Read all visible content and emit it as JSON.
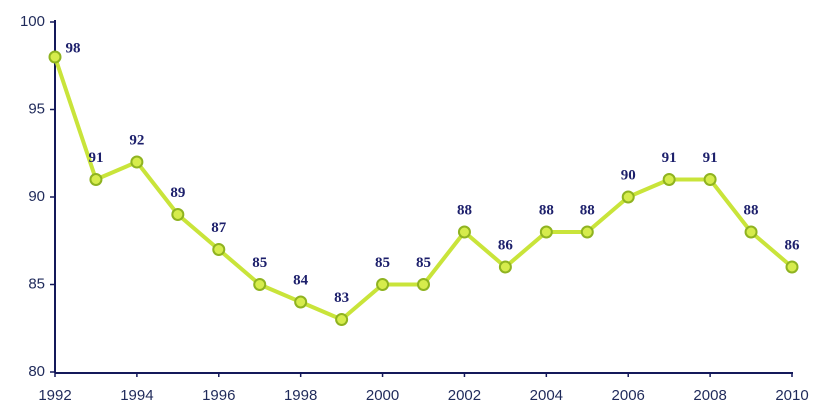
{
  "chart_data": {
    "type": "line",
    "x": [
      1992,
      1993,
      1994,
      1995,
      1996,
      1997,
      1998,
      1999,
      2000,
      2001,
      2002,
      2003,
      2004,
      2005,
      2006,
      2007,
      2008,
      2009,
      2010
    ],
    "values": [
      98,
      91,
      92,
      89,
      87,
      85,
      84,
      83,
      85,
      85,
      88,
      86,
      88,
      88,
      90,
      91,
      91,
      88,
      86
    ],
    "color": "#c9e43a",
    "marker_color": "#d6ec4c",
    "marker_edge": "#8fb320",
    "xlim": [
      1992,
      2010
    ],
    "xticks": [
      1992,
      1994,
      1996,
      1998,
      2000,
      2002,
      2004,
      2006,
      2008,
      2010
    ],
    "ylim": [
      80,
      100
    ],
    "yticks": [
      80,
      85,
      90,
      95,
      100
    ],
    "grid": false
  }
}
